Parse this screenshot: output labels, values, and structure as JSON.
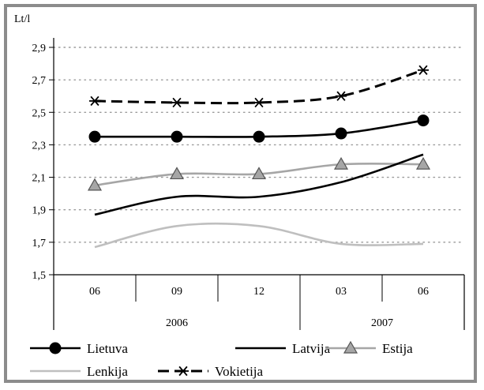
{
  "chart_data": {
    "type": "line",
    "ylabel": "Lt/l",
    "ylim": [
      1.5,
      2.9
    ],
    "yticks": [
      "1,5",
      "1,7",
      "1,9",
      "2,1",
      "2,3",
      "2,5",
      "2,7",
      "2,9"
    ],
    "ytick_values": [
      1.5,
      1.7,
      1.9,
      2.1,
      2.3,
      2.5,
      2.7,
      2.9
    ],
    "categories": [
      "06",
      "09",
      "12",
      "03",
      "06"
    ],
    "year_groups": [
      {
        "label": "2006",
        "span": 3
      },
      {
        "label": "2007",
        "span": 2
      }
    ],
    "grid": "horizontal dotted",
    "legend_position": "bottom",
    "series": [
      {
        "name": "Lietuva",
        "values": [
          2.35,
          2.35,
          2.35,
          2.37,
          2.45
        ],
        "color": "#000000",
        "style": "solid",
        "marker": "circle"
      },
      {
        "name": "Latvija",
        "values": [
          1.87,
          1.98,
          1.98,
          2.07,
          2.24
        ],
        "color": "#000000",
        "style": "solid",
        "marker": "none"
      },
      {
        "name": "Estija",
        "values": [
          2.05,
          2.12,
          2.12,
          2.18,
          2.18
        ],
        "color": "#a6a6a6",
        "style": "solid",
        "marker": "triangle"
      },
      {
        "name": "Lenkija",
        "values": [
          1.67,
          1.8,
          1.8,
          1.69,
          1.69
        ],
        "color": "#bfbfbf",
        "style": "solid",
        "marker": "none"
      },
      {
        "name": "Vokietija",
        "values": [
          2.57,
          2.56,
          2.56,
          2.6,
          2.76
        ],
        "color": "#000000",
        "style": "dashed",
        "marker": "asterisk"
      }
    ]
  }
}
